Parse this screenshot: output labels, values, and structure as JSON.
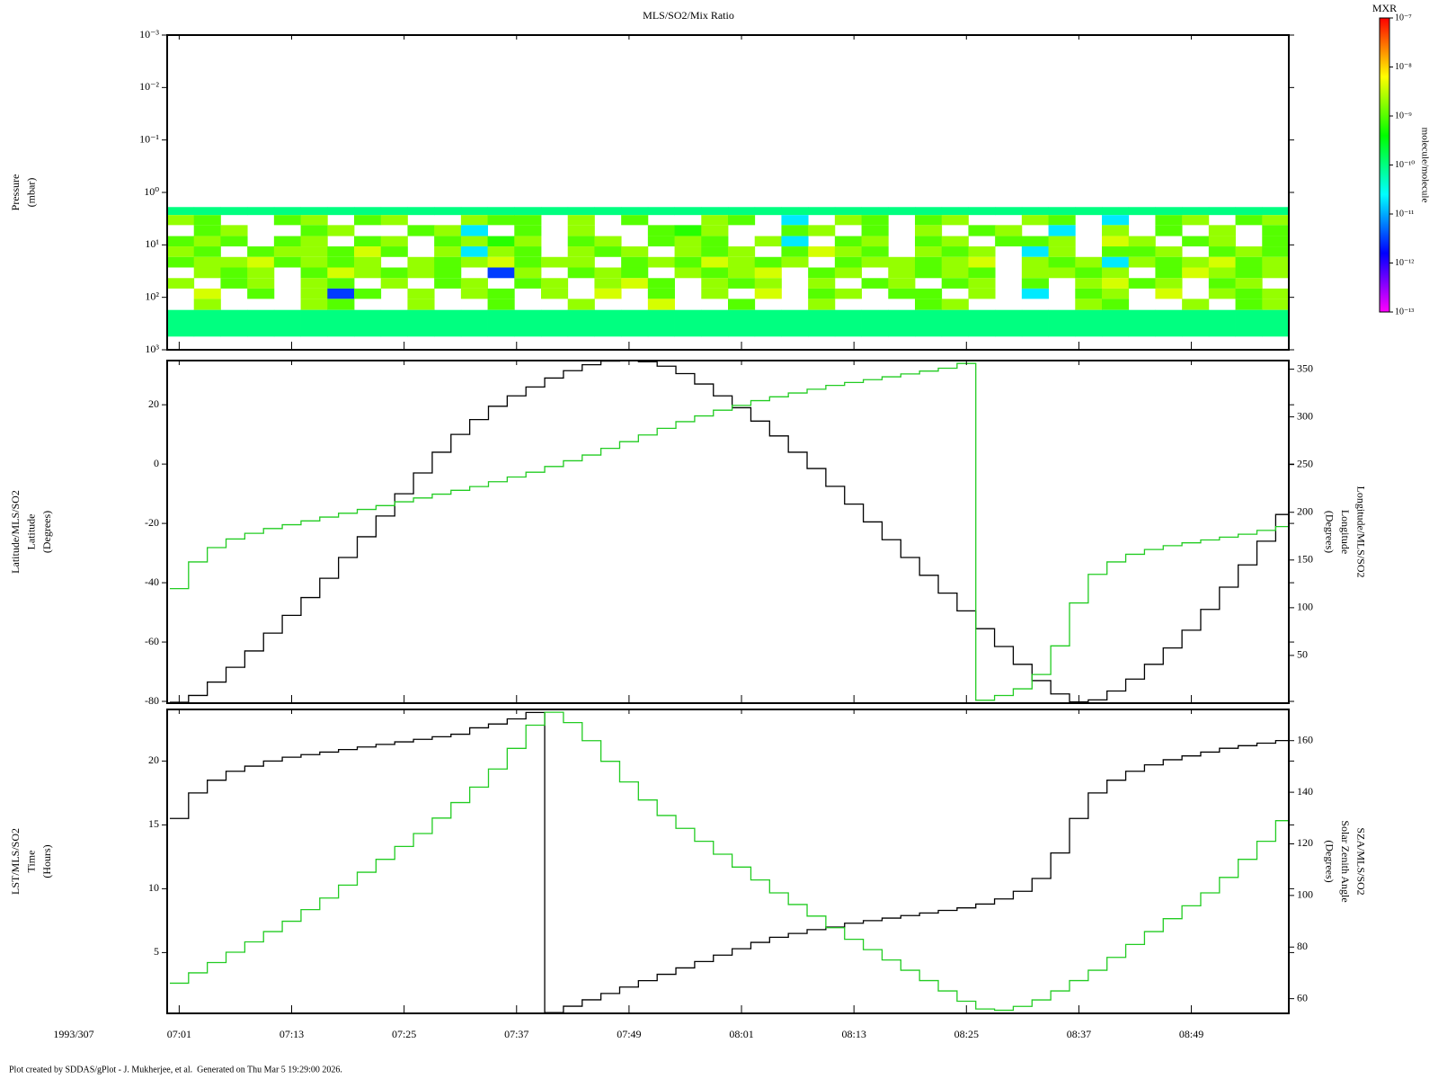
{
  "chart_data": [
    {
      "type": "heatmap",
      "title": "MLS/SO2/Mix Ratio",
      "ylabel": [
        "Pressure",
        "(mbar)"
      ],
      "xlim": [
        "06:59:43",
        "08:59:24"
      ],
      "xticks": [
        "07:01",
        "07:13",
        "07:25",
        "07:37",
        "07:49",
        "08:01",
        "08:13",
        "08:25",
        "08:37",
        "08:49"
      ],
      "xtick_labels": false,
      "ylog": true,
      "ylim": [
        1000,
        0.001
      ],
      "yticks": [
        {
          "value": 0.001,
          "label": "10⁻³"
        },
        {
          "value": 0.01,
          "label": "10⁻²"
        },
        {
          "value": 0.1,
          "label": "10⁻¹"
        },
        {
          "value": 1,
          "label": "10⁰"
        },
        {
          "value": 10,
          "label": "10¹"
        },
        {
          "value": 100,
          "label": "10²"
        },
        {
          "value": 1000,
          "label": "10³"
        }
      ],
      "y_edges": [
        1.9,
        2.7,
        4.2,
        6.8,
        10.7,
        17,
        27,
        43,
        68,
        107,
        174,
        560
      ],
      "colorbar_title": "MXR",
      "colorbar_label": "molecule/molecule",
      "clim": [
        1e-13,
        1e-07
      ],
      "colorscale": [
        "#ff00ff",
        "#0000ff",
        "#00ffff",
        "#00ff00",
        "#ffff00",
        "#ff0000"
      ],
      "cticks": [
        {
          "value": 1e-07,
          "label": "10⁻⁷"
        },
        {
          "value": 1e-08,
          "label": "10⁻⁸"
        },
        {
          "value": 1e-09,
          "label": "10⁻⁹"
        },
        {
          "value": 1e-10,
          "label": "10⁻¹⁰"
        },
        {
          "value": 1e-11,
          "label": "10⁻¹¹"
        },
        {
          "value": 1e-12,
          "label": "10⁻¹²"
        },
        {
          "value": 1e-13,
          "label": "10⁻¹³"
        }
      ],
      "z": [
        [
          1e-10,
          1e-10,
          1e-10,
          1e-10,
          1e-10,
          1e-10,
          1e-10,
          1e-10,
          1e-10,
          1e-10,
          1e-10,
          1e-10,
          1e-10,
          1e-10,
          1e-10,
          1e-10,
          1e-10,
          1e-10,
          1e-10,
          1e-10,
          1e-10,
          1e-10,
          1e-10,
          1e-10,
          1e-10,
          1e-10,
          1e-10,
          1e-10,
          1e-10,
          1e-10,
          1e-10,
          1e-10,
          1e-10,
          1e-10,
          1e-10,
          1e-10,
          1e-10,
          1e-10,
          1e-10,
          1e-10,
          1e-10,
          1e-10
        ],
        [
          2e-09,
          1e-09,
          null,
          null,
          1e-09,
          2e-09,
          null,
          1e-09,
          2e-09,
          null,
          null,
          2e-09,
          1e-09,
          1e-09,
          null,
          2e-09,
          null,
          1e-09,
          null,
          null,
          2e-09,
          1e-09,
          null,
          2e-11,
          null,
          2e-09,
          1e-09,
          null,
          1e-09,
          2e-09,
          null,
          null,
          2e-09,
          1e-09,
          null,
          2e-11,
          null,
          1e-09,
          2e-09,
          null,
          1e-09,
          2e-09
        ],
        [
          null,
          1e-09,
          2e-09,
          null,
          null,
          1e-09,
          2e-09,
          null,
          null,
          1e-09,
          2e-09,
          2e-11,
          null,
          1e-09,
          null,
          2e-09,
          null,
          null,
          1e-09,
          6e-10,
          2e-09,
          null,
          null,
          1e-09,
          2e-09,
          null,
          1e-09,
          null,
          2e-09,
          null,
          1e-09,
          2e-09,
          null,
          2e-11,
          null,
          2e-09,
          null,
          1e-09,
          null,
          2e-09,
          null,
          1e-09
        ],
        [
          1e-09,
          2e-09,
          1e-09,
          null,
          1e-09,
          2e-09,
          null,
          1e-09,
          2e-09,
          null,
          1e-09,
          2e-09,
          6e-10,
          2e-09,
          null,
          1e-09,
          2e-09,
          null,
          1e-09,
          2e-09,
          1e-09,
          null,
          2e-09,
          2e-11,
          null,
          1e-09,
          2e-09,
          null,
          1e-09,
          2e-09,
          null,
          1e-09,
          1e-09,
          2e-09,
          null,
          4e-09,
          2e-09,
          null,
          1e-09,
          2e-09,
          null,
          1e-09
        ],
        [
          2e-09,
          1e-09,
          null,
          1e-09,
          2e-09,
          2e-09,
          1e-09,
          4e-09,
          1e-09,
          null,
          2e-09,
          2e-11,
          2e-09,
          1e-09,
          null,
          2e-09,
          1e-09,
          2e-09,
          null,
          2e-09,
          1e-09,
          2e-09,
          null,
          1e-09,
          4e-09,
          2e-09,
          1e-09,
          null,
          2e-09,
          1e-09,
          2e-09,
          null,
          2e-11,
          2e-09,
          null,
          1e-09,
          1e-09,
          2e-09,
          null,
          1e-09,
          2e-09,
          1e-09
        ],
        [
          1e-09,
          2e-09,
          2e-09,
          4e-09,
          1e-09,
          2e-09,
          1e-09,
          2e-09,
          null,
          2e-09,
          1e-09,
          2e-09,
          4e-09,
          1e-09,
          2e-09,
          2e-09,
          null,
          1e-09,
          2e-09,
          1e-09,
          4e-09,
          2e-09,
          1e-09,
          2e-09,
          null,
          1e-09,
          2e-09,
          2e-09,
          1e-09,
          2e-09,
          4e-09,
          null,
          2e-09,
          1e-09,
          2e-09,
          2e-11,
          2e-09,
          1e-09,
          2e-09,
          4e-09,
          1e-09,
          2e-09
        ],
        [
          null,
          2e-09,
          1e-09,
          2e-09,
          null,
          1e-09,
          4e-09,
          2e-09,
          1e-09,
          2e-09,
          1e-09,
          null,
          3e-12,
          2e-09,
          null,
          1e-09,
          2e-09,
          1e-09,
          null,
          2e-09,
          1e-09,
          2e-09,
          4e-09,
          null,
          1e-09,
          2e-09,
          null,
          2e-09,
          1e-09,
          2e-09,
          1e-09,
          null,
          2e-09,
          2e-09,
          1e-09,
          2e-09,
          null,
          1e-09,
          4e-09,
          2e-09,
          1e-09,
          2e-09
        ],
        [
          2e-09,
          null,
          1e-09,
          2e-09,
          null,
          2e-09,
          1e-09,
          null,
          2e-09,
          null,
          1e-09,
          2e-09,
          null,
          1e-09,
          2e-09,
          null,
          2e-09,
          4e-09,
          1e-09,
          null,
          2e-09,
          1e-09,
          2e-09,
          null,
          2e-09,
          null,
          1e-09,
          2e-09,
          null,
          1e-09,
          2e-09,
          null,
          1e-09,
          null,
          2e-09,
          4e-09,
          1e-09,
          2e-09,
          null,
          1e-09,
          2e-09,
          null
        ],
        [
          null,
          4e-09,
          null,
          1e-09,
          null,
          2e-09,
          3e-12,
          1e-09,
          null,
          2e-09,
          null,
          2e-09,
          1e-09,
          null,
          2e-09,
          null,
          4e-09,
          null,
          1e-09,
          null,
          2e-09,
          null,
          4e-09,
          null,
          1e-09,
          2e-09,
          null,
          1e-09,
          1e-09,
          null,
          2e-09,
          null,
          2e-11,
          null,
          1e-09,
          2e-09,
          null,
          4e-09,
          null,
          2e-09,
          1e-09,
          2e-09
        ],
        [
          null,
          2e-09,
          null,
          null,
          null,
          2e-09,
          1e-09,
          null,
          null,
          2e-09,
          null,
          null,
          1e-09,
          null,
          null,
          2e-09,
          null,
          null,
          4e-09,
          null,
          null,
          1e-09,
          null,
          null,
          2e-09,
          null,
          null,
          null,
          1e-09,
          2e-09,
          null,
          null,
          null,
          null,
          2e-09,
          1e-09,
          null,
          null,
          2e-09,
          null,
          1e-09,
          2e-09
        ],
        [
          1e-10,
          1e-10,
          1e-10,
          1e-10,
          1e-10,
          1e-10,
          1e-10,
          1e-10,
          1e-10,
          1e-10,
          1e-10,
          1e-10,
          1e-10,
          1e-10,
          1e-10,
          1e-10,
          1e-10,
          1e-10,
          1e-10,
          1e-10,
          1e-10,
          1e-10,
          1e-10,
          1e-10,
          1e-10,
          1e-10,
          1e-10,
          1e-10,
          1e-10,
          1e-10,
          1e-10,
          1e-10,
          1e-10,
          1e-10,
          1e-10,
          1e-10,
          1e-10,
          1e-10,
          1e-10,
          1e-10,
          1e-10,
          1e-10
        ]
      ]
    },
    {
      "type": "step",
      "ylabel": [
        "Latitude/MLS/SO2",
        "Latitude",
        "(Degrees)"
      ],
      "y2label": [
        "Longitude/MLS/SO2",
        "Longitude",
        "(Degrees)"
      ],
      "xlim": [
        "06:59:43",
        "08:59:24"
      ],
      "xticks": [
        "07:01",
        "07:13",
        "07:25",
        "07:37",
        "07:49",
        "08:01",
        "08:13",
        "08:25",
        "08:37",
        "08:49"
      ],
      "xtick_labels": false,
      "ylim": [
        -80.6,
        34.9
      ],
      "yticks": [
        -80,
        -60,
        -40,
        -20,
        0,
        20
      ],
      "y2lim": [
        0,
        359
      ],
      "y2ticks": [
        50,
        100,
        150,
        200,
        250,
        300,
        350
      ],
      "x": [
        "07:00",
        "07:02",
        "07:04",
        "07:06",
        "07:08",
        "07:10",
        "07:12",
        "07:14",
        "07:16",
        "07:18",
        "07:20",
        "07:22",
        "07:24",
        "07:26",
        "07:28",
        "07:30",
        "07:32",
        "07:34",
        "07:36",
        "07:38",
        "07:40",
        "07:42",
        "07:44",
        "07:46",
        "07:48",
        "07:50",
        "07:52",
        "07:54",
        "07:56",
        "07:58",
        "08:00",
        "08:02",
        "08:04",
        "08:06",
        "08:08",
        "08:10",
        "08:12",
        "08:14",
        "08:16",
        "08:18",
        "08:20",
        "08:22",
        "08:24",
        "08:26",
        "08:28",
        "08:30",
        "08:32",
        "08:34",
        "08:36",
        "08:38",
        "08:40",
        "08:42",
        "08:44",
        "08:46",
        "08:48",
        "08:50",
        "08:52",
        "08:54",
        "08:56",
        "08:58"
      ],
      "series": [
        {
          "color": "#000000",
          "values": [
            -80.3,
            -78,
            -73.5,
            -68.5,
            -63,
            -57,
            -51,
            -45,
            -38.5,
            -31.5,
            -24.5,
            -17.5,
            -10,
            -3,
            4,
            10,
            15,
            19.5,
            23,
            26,
            29,
            31.5,
            33.5,
            34.7,
            35,
            34.5,
            33,
            30.5,
            27,
            23,
            19,
            14.5,
            9.5,
            4,
            -1.5,
            -7.5,
            -13.5,
            -19.5,
            -25.5,
            -31.5,
            -37.5,
            -43.5,
            -49.5,
            -55.5,
            -61.5,
            -67.5,
            -73,
            -77.5,
            -80.2,
            -79.5,
            -76.5,
            -72.5,
            -67.5,
            -62,
            -56,
            -49,
            -41.5,
            -34,
            -26,
            -17
          ]
        },
        {
          "color": "#22cc22",
          "axis": "y2",
          "values": [
            120,
            148,
            163,
            172,
            178,
            183,
            187,
            191,
            195,
            199,
            203,
            207,
            211,
            215,
            219,
            223,
            227,
            232,
            237,
            242,
            248,
            254,
            260,
            267,
            274,
            281,
            288,
            295,
            301,
            307,
            312,
            317,
            321,
            325,
            329,
            333,
            336,
            339,
            342,
            345,
            348,
            351,
            356,
            3,
            8,
            15,
            30,
            60,
            105,
            135,
            148,
            156,
            161,
            165,
            168,
            171,
            174,
            177,
            181,
            185
          ]
        }
      ]
    },
    {
      "type": "step",
      "ylabel": [
        "LST/MLS/SO2",
        "Time",
        "(Hours)"
      ],
      "y2label": [
        "SZA/MLS/SO2",
        "Solar Zenith Angle",
        "(Degrees)"
      ],
      "xlabel": "1993/307",
      "xlim": [
        "06:59:43",
        "08:59:24"
      ],
      "xticks": [
        "07:01",
        "07:13",
        "07:25",
        "07:37",
        "07:49",
        "08:01",
        "08:13",
        "08:25",
        "08:37",
        "08:49"
      ],
      "xtick_labels": true,
      "ylim": [
        0.24,
        24.04
      ],
      "yticks": [
        5,
        10,
        15,
        20
      ],
      "y2lim": [
        54.3,
        172.1
      ],
      "y2ticks": [
        60,
        80,
        100,
        120,
        140,
        160
      ],
      "x": [
        "07:00",
        "07:02",
        "07:04",
        "07:06",
        "07:08",
        "07:10",
        "07:12",
        "07:14",
        "07:16",
        "07:18",
        "07:20",
        "07:22",
        "07:24",
        "07:26",
        "07:28",
        "07:30",
        "07:32",
        "07:34",
        "07:36",
        "07:38",
        "07:40",
        "07:42",
        "07:44",
        "07:46",
        "07:48",
        "07:50",
        "07:52",
        "07:54",
        "07:56",
        "07:58",
        "08:00",
        "08:02",
        "08:04",
        "08:06",
        "08:08",
        "08:10",
        "08:12",
        "08:14",
        "08:16",
        "08:18",
        "08:20",
        "08:22",
        "08:24",
        "08:26",
        "08:28",
        "08:30",
        "08:32",
        "08:34",
        "08:36",
        "08:38",
        "08:40",
        "08:42",
        "08:44",
        "08:46",
        "08:48",
        "08:50",
        "08:52",
        "08:54",
        "08:56",
        "08:58"
      ],
      "series": [
        {
          "color": "#000000",
          "values": [
            15.5,
            17.5,
            18.5,
            19.2,
            19.6,
            20,
            20.3,
            20.5,
            20.7,
            20.9,
            21.1,
            21.3,
            21.5,
            21.7,
            21.9,
            22.1,
            22.6,
            22.9,
            23.3,
            23.8,
            0.3,
            0.8,
            1.3,
            1.8,
            2.3,
            2.8,
            3.3,
            3.8,
            4.3,
            4.8,
            5.3,
            5.8,
            6.2,
            6.5,
            6.8,
            7.0,
            7.3,
            7.5,
            7.7,
            7.9,
            8.1,
            8.3,
            8.5,
            8.8,
            9.2,
            9.8,
            10.8,
            12.8,
            15.5,
            17.5,
            18.5,
            19.2,
            19.7,
            20.1,
            20.4,
            20.7,
            21.0,
            21.2,
            21.4,
            21.6
          ]
        },
        {
          "color": "#22cc22",
          "axis": "y2",
          "values": [
            66,
            70,
            74,
            78,
            82,
            86,
            90,
            94.5,
            99,
            104,
            109,
            114,
            119,
            124,
            130,
            136,
            142,
            149,
            157,
            166,
            171,
            167,
            160,
            152,
            144,
            137,
            131,
            126,
            121,
            116,
            111,
            106,
            101,
            96.5,
            92,
            87.5,
            83,
            79,
            75,
            71,
            67,
            63,
            59,
            56,
            55.5,
            57,
            59.5,
            63,
            67,
            71,
            76,
            81,
            86,
            91,
            96,
            101,
            107,
            114,
            121,
            129
          ]
        }
      ]
    }
  ],
  "footer": "Plot created by SDDAS/gPlot - J. Mukherjee, et al.  Generated on Thu Mar 5 19:29:00 2026."
}
